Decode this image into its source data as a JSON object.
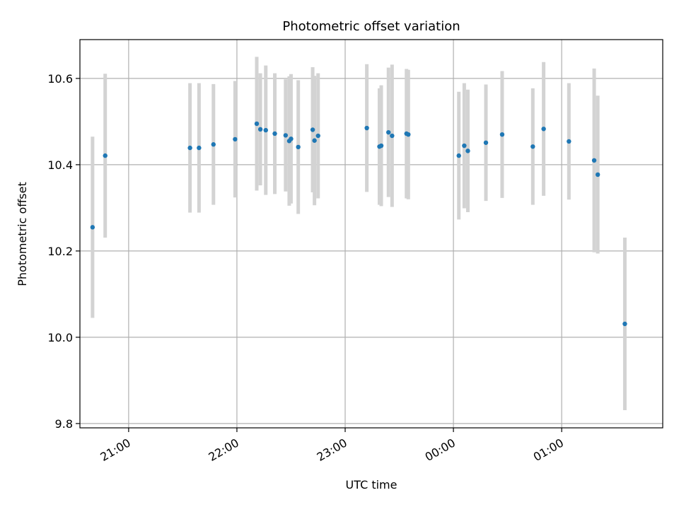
{
  "chart_data": {
    "type": "scatter",
    "title": "Photometric offset variation",
    "xlabel": "UTC time",
    "ylabel": "Photometric offset",
    "x_range": [
      "20:33",
      "01:56"
    ],
    "ylim": [
      9.79,
      10.69
    ],
    "x_ticks": [
      "21:00",
      "22:00",
      "23:00",
      "00:00",
      "01:00"
    ],
    "y_ticks": [
      "9.8",
      "10.0",
      "10.2",
      "10.4",
      "10.6"
    ],
    "grid": true,
    "series": [
      {
        "marker_color": "#1f77b4",
        "errorbar_color": "#d3d3d3",
        "points": [
          {
            "x": "20:40",
            "y": 10.255,
            "err": 0.21
          },
          {
            "x": "20:47",
            "y": 10.421,
            "err": 0.19
          },
          {
            "x": "21:34",
            "y": 10.439,
            "err": 0.15
          },
          {
            "x": "21:39",
            "y": 10.439,
            "err": 0.15
          },
          {
            "x": "21:47",
            "y": 10.447,
            "err": 0.14
          },
          {
            "x": "21:59",
            "y": 10.459,
            "err": 0.135
          },
          {
            "x": "22:11",
            "y": 10.495,
            "err": 0.155
          },
          {
            "x": "22:13",
            "y": 10.482,
            "err": 0.13
          },
          {
            "x": "22:16",
            "y": 10.48,
            "err": 0.15
          },
          {
            "x": "22:21",
            "y": 10.472,
            "err": 0.14
          },
          {
            "x": "22:27",
            "y": 10.468,
            "err": 0.13
          },
          {
            "x": "22:29",
            "y": 10.455,
            "err": 0.15
          },
          {
            "x": "22:30",
            "y": 10.46,
            "err": 0.15
          },
          {
            "x": "22:34",
            "y": 10.441,
            "err": 0.155
          },
          {
            "x": "22:42",
            "y": 10.481,
            "err": 0.145
          },
          {
            "x": "22:43",
            "y": 10.456,
            "err": 0.15
          },
          {
            "x": "22:45",
            "y": 10.467,
            "err": 0.145
          },
          {
            "x": "23:12",
            "y": 10.485,
            "err": 0.148
          },
          {
            "x": "23:19",
            "y": 10.442,
            "err": 0.135
          },
          {
            "x": "23:20",
            "y": 10.444,
            "err": 0.14
          },
          {
            "x": "23:24",
            "y": 10.475,
            "err": 0.15
          },
          {
            "x": "23:26",
            "y": 10.467,
            "err": 0.165
          },
          {
            "x": "23:34",
            "y": 10.472,
            "err": 0.15
          },
          {
            "x": "23:35",
            "y": 10.47,
            "err": 0.15
          },
          {
            "x": "00:03",
            "y": 10.421,
            "err": 0.148
          },
          {
            "x": "00:06",
            "y": 10.444,
            "err": 0.145
          },
          {
            "x": "00:08",
            "y": 10.432,
            "err": 0.142
          },
          {
            "x": "00:18",
            "y": 10.451,
            "err": 0.135
          },
          {
            "x": "00:27",
            "y": 10.47,
            "err": 0.147
          },
          {
            "x": "00:44",
            "y": 10.442,
            "err": 0.135
          },
          {
            "x": "00:50",
            "y": 10.483,
            "err": 0.155
          },
          {
            "x": "01:04",
            "y": 10.454,
            "err": 0.135
          },
          {
            "x": "01:18",
            "y": 10.41,
            "err": 0.213
          },
          {
            "x": "01:20",
            "y": 10.377,
            "err": 0.183
          },
          {
            "x": "01:35",
            "y": 10.031,
            "err": 0.2
          }
        ]
      }
    ]
  }
}
